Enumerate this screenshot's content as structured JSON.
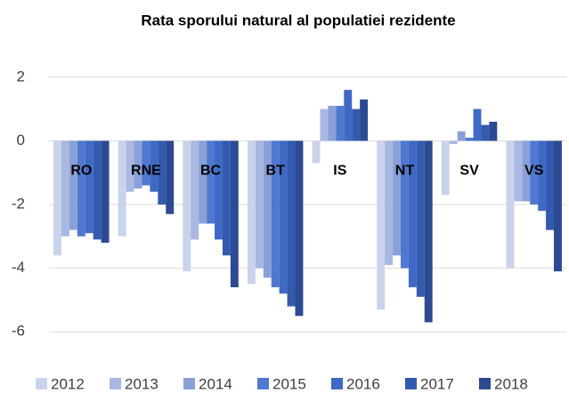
{
  "chart_data": {
    "type": "bar",
    "title": "Rata sporului natural al populatiei rezidente",
    "categories": [
      "RO",
      "RNE",
      "BC",
      "BT",
      "IS",
      "NT",
      "SV",
      "VS"
    ],
    "series": [
      {
        "name": "2012",
        "color": "#c9d3ea",
        "values": [
          -3.6,
          -3.0,
          -4.1,
          -4.5,
          -0.7,
          -5.3,
          -1.7,
          -4.0
        ]
      },
      {
        "name": "2013",
        "color": "#a9b8e0",
        "values": [
          -3.0,
          -1.6,
          -3.1,
          -4.0,
          1.0,
          -3.9,
          -0.1,
          -1.9
        ]
      },
      {
        "name": "2014",
        "color": "#8aa0d8",
        "values": [
          -2.8,
          -1.5,
          -2.6,
          -4.3,
          1.1,
          -3.6,
          0.3,
          -1.9
        ]
      },
      {
        "name": "2015",
        "color": "#4f78d0",
        "values": [
          -3.0,
          -1.4,
          -2.6,
          -4.6,
          1.1,
          -4.0,
          0.1,
          -2.0
        ]
      },
      {
        "name": "2016",
        "color": "#3f69c4",
        "values": [
          -2.9,
          -1.6,
          -3.1,
          -4.8,
          1.6,
          -4.6,
          1.0,
          -2.2
        ]
      },
      {
        "name": "2017",
        "color": "#345aae",
        "values": [
          -3.1,
          -2.0,
          -3.6,
          -5.2,
          1.0,
          -4.9,
          0.5,
          -2.8
        ]
      },
      {
        "name": "2018",
        "color": "#2b4a92",
        "values": [
          -3.2,
          -2.3,
          -4.6,
          -5.5,
          1.3,
          -5.7,
          0.6,
          -4.1
        ]
      }
    ],
    "ylim": [
      -7,
      3
    ],
    "yticks": [
      2,
      0,
      -2,
      -4,
      -6
    ],
    "grid": true,
    "legend": "bottom"
  }
}
